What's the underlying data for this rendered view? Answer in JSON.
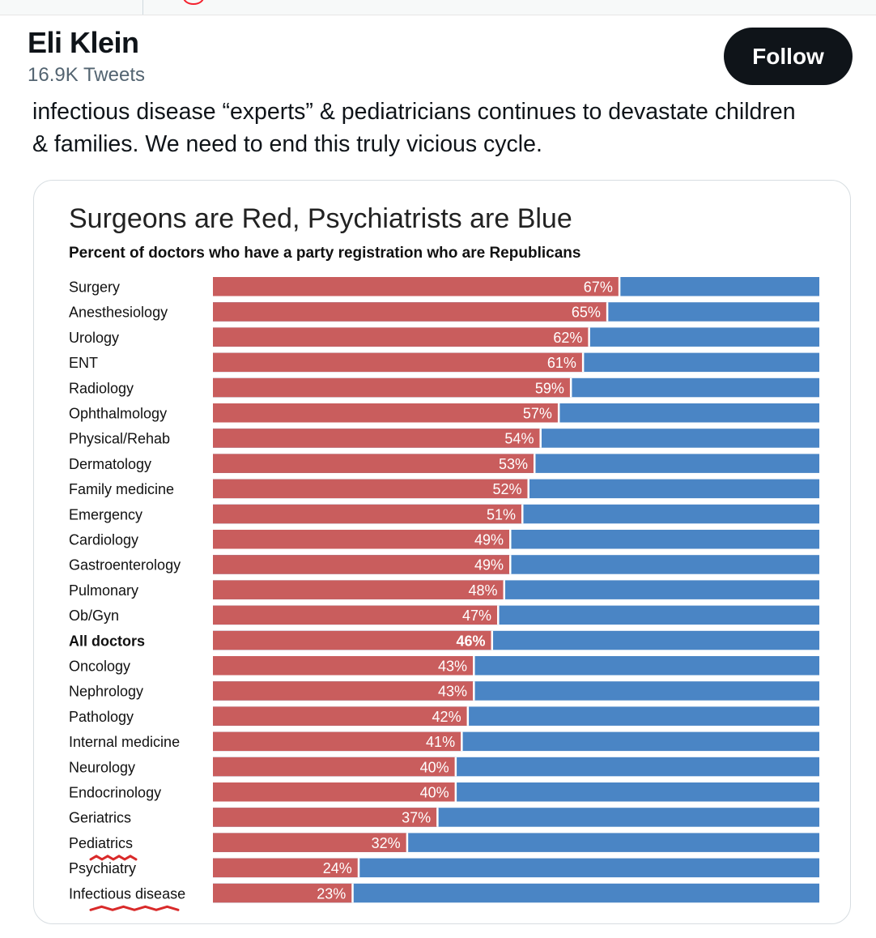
{
  "header": {
    "name": "Eli Klein",
    "tweet_count": "16.9K Tweets",
    "follow_label": "Follow"
  },
  "tweet": {
    "text_line1": "infectious disease “experts” & pediatricians continues to devastate children",
    "text_line2": "& families. We need to end this truly vicious cycle."
  },
  "colors": {
    "republican": "#c95d5d",
    "democrat": "#4a85c5",
    "follow_bg": "#0f1419"
  },
  "chart_data": {
    "type": "bar",
    "orientation": "horizontal-stacked",
    "title": "Surgeons are Red, Psychiatrists are Blue",
    "subtitle": "Percent of doctors who have a party registration who are Republicans",
    "xlim": [
      0,
      100
    ],
    "highlighted": [
      "All doctors"
    ],
    "underlined": [
      "Pediatrics",
      "Infectious disease"
    ],
    "categories": [
      "Surgery",
      "Anesthesiology",
      "Urology",
      "ENT",
      "Radiology",
      "Ophthalmology",
      "Physical/Rehab",
      "Dermatology",
      "Family medicine",
      "Emergency",
      "Cardiology",
      "Gastroenterology",
      "Pulmonary",
      "Ob/Gyn",
      "All doctors",
      "Oncology",
      "Nephrology",
      "Pathology",
      "Internal medicine",
      "Neurology",
      "Endocrinology",
      "Geriatrics",
      "Pediatrics",
      "Psychiatry",
      "Infectious disease"
    ],
    "values": [
      67,
      65,
      62,
      61,
      59,
      57,
      54,
      53,
      52,
      51,
      49,
      49,
      48,
      47,
      46,
      43,
      43,
      42,
      41,
      40,
      40,
      37,
      32,
      24,
      23
    ],
    "labels": [
      "67%",
      "65%",
      "62%",
      "61%",
      "59%",
      "57%",
      "54%",
      "53%",
      "52%",
      "51%",
      "49%",
      "49%",
      "48%",
      "47%",
      "46%",
      "43%",
      "43%",
      "42%",
      "41%",
      "40%",
      "40%",
      "37%",
      "32%",
      "24%",
      "23%"
    ]
  }
}
